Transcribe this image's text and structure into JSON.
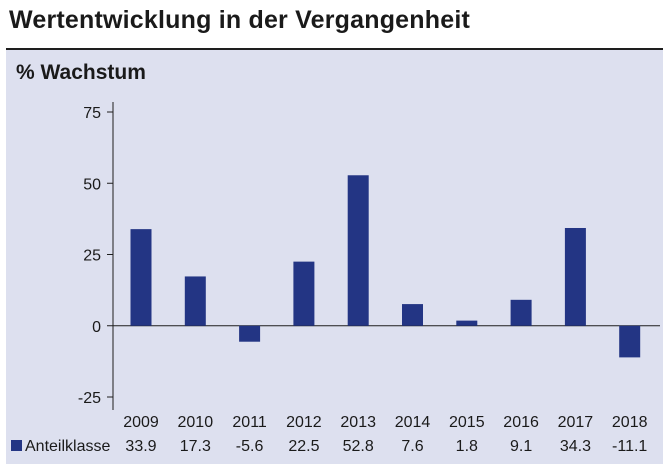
{
  "title": "Wertentwicklung in der Vergangenheit",
  "chart_data": {
    "type": "bar",
    "ylabel": "% Wachstum",
    "categories": [
      "2009",
      "2010",
      "2011",
      "2012",
      "2013",
      "2014",
      "2015",
      "2016",
      "2017",
      "2018"
    ],
    "series": [
      {
        "name": "Anteilklasse",
        "values": [
          33.9,
          17.3,
          -5.6,
          22.5,
          52.8,
          7.6,
          1.8,
          9.1,
          34.3,
          -11.1
        ],
        "value_labels": [
          "33.9",
          "17.3",
          "-5.6",
          "22.5",
          "52.8",
          "7.6",
          "1.8",
          "9.1",
          "34.3",
          "-11.1"
        ]
      }
    ],
    "ylim": [
      -25,
      75
    ],
    "yticks": [
      75,
      50,
      25,
      0,
      -25
    ],
    "legend": "bottom-left",
    "bar_color": "#233584",
    "grid": false
  }
}
